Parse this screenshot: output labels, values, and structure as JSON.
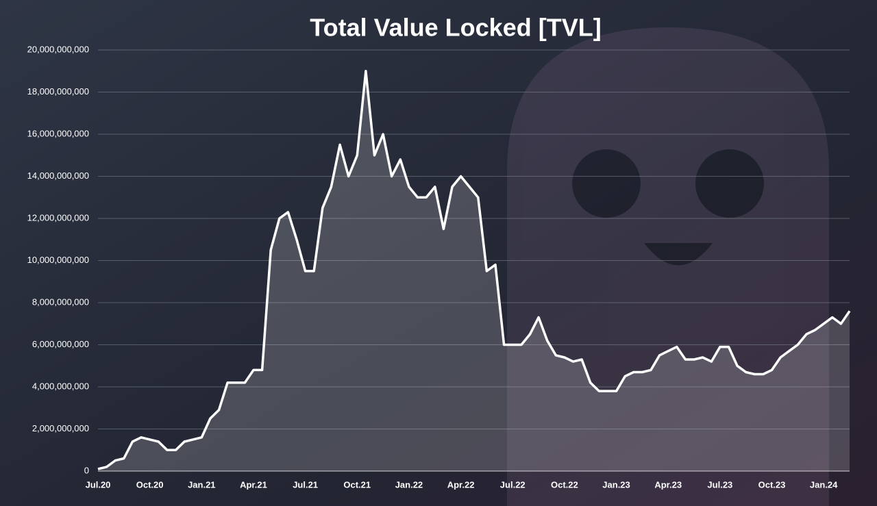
{
  "chart_data": {
    "type": "area",
    "title": "Total Value Locked [TVL]",
    "categories": [
      "Jul.20",
      null,
      null,
      null,
      null,
      null,
      "Oct.20",
      null,
      null,
      null,
      null,
      null,
      "Jan.21",
      null,
      null,
      null,
      null,
      null,
      "Apr.21",
      null,
      null,
      null,
      null,
      null,
      "Jul.21",
      null,
      null,
      null,
      null,
      null,
      "Oct.21",
      null,
      null,
      null,
      null,
      null,
      "Jan.22",
      null,
      null,
      null,
      null,
      null,
      "Apr.22",
      null,
      null,
      null,
      null,
      null,
      "Jul.22",
      null,
      null,
      null,
      null,
      null,
      "Oct.22",
      null,
      null,
      null,
      null,
      null,
      "Jan.23",
      null,
      null,
      null,
      null,
      null,
      "Apr.23",
      null,
      null,
      null,
      null,
      null,
      "Jul.23",
      null,
      null,
      null,
      null,
      null,
      "Oct.23",
      null,
      null,
      null,
      null,
      null,
      "Jan.24",
      null,
      null,
      null
    ],
    "series": [
      {
        "color": "#ffffff",
        "values": [
          100000000,
          200000000,
          500000000,
          600000000,
          1400000000,
          1600000000,
          1500000000,
          1400000000,
          1000000000,
          1000000000,
          1400000000,
          1500000000,
          1600000000,
          2500000000,
          2900000000,
          4200000000,
          4200000000,
          4200000000,
          4800000000,
          4800000000,
          10500000000,
          12000000000,
          12300000000,
          11000000000,
          9500000000,
          9500000000,
          12500000000,
          13500000000,
          15500000000,
          14000000000,
          15000000000,
          19000000000,
          15000000000,
          16000000000,
          14000000000,
          14800000000,
          13500000000,
          13000000000,
          13000000000,
          13500000000,
          11500000000,
          13500000000,
          14000000000,
          13500000000,
          13000000000,
          9500000000,
          9800000000,
          6000000000,
          6000000000,
          6000000000,
          6500000000,
          7300000000,
          6200000000,
          5500000000,
          5400000000,
          5200000000,
          5300000000,
          4200000000,
          3800000000,
          3800000000,
          3800000000,
          4500000000,
          4700000000,
          4700000000,
          4800000000,
          5500000000,
          5700000000,
          5900000000,
          5300000000,
          5300000000,
          5400000000,
          5200000000,
          5900000000,
          5900000000,
          5000000000,
          4700000000,
          4600000000,
          4600000000,
          4800000000,
          5400000000,
          5700000000,
          6000000000,
          6500000000,
          6700000000,
          7000000000,
          7300000000,
          7000000000,
          7600000000
        ]
      }
    ],
    "ylim": [
      0,
      20000000000
    ],
    "yticks": [
      0,
      {
        "value": 2000000000,
        "label": "2,000,000,000"
      },
      {
        "value": 4000000000,
        "label": "4,000,000,000"
      },
      {
        "value": 6000000000,
        "label": "6,000,000,000"
      },
      {
        "value": 8000000000,
        "label": "8,000,000,000"
      },
      {
        "value": 10000000000,
        "label": "10,000,000,000"
      },
      {
        "value": 12000000000,
        "label": "12,000,000,000"
      },
      {
        "value": 14000000000,
        "label": "14,000,000,000"
      },
      {
        "value": 16000000000,
        "label": "16,000,000,000"
      },
      {
        "value": 18000000000,
        "label": "18,000,000,000"
      },
      {
        "value": 20000000000,
        "label": "20,000,000,000"
      }
    ],
    "grid": true
  }
}
